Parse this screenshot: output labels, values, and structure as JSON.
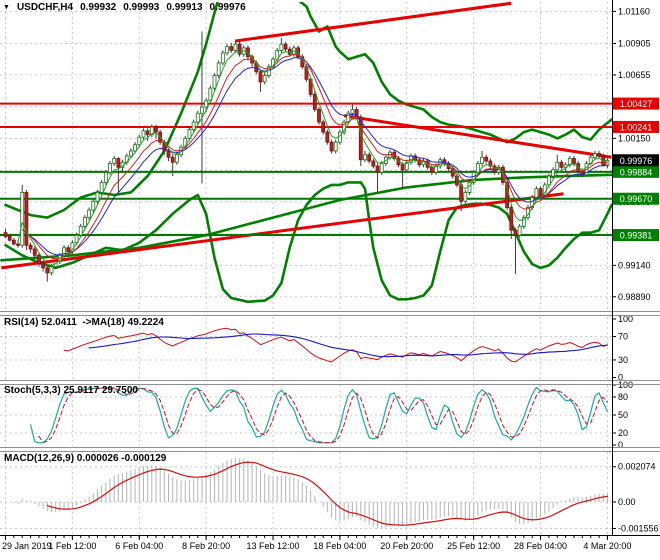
{
  "window": {
    "symbol_period": "USDCHF,H4",
    "open": "0.99932",
    "high": "0.99993",
    "low": "0.99913",
    "close": "0.99976",
    "marker_icon": "▼"
  },
  "panels": {
    "rsi": {
      "title": "RSI(14) 52.0411  ->MA(18) 49.2224",
      "ticks": [
        "100",
        "70",
        "30",
        "0"
      ],
      "grid_levels": [
        70,
        30
      ]
    },
    "stoch": {
      "title": "Stoch(5,3,3) 25.9117 29.7500",
      "ticks": [
        "100",
        "80",
        "50",
        "20",
        "0"
      ],
      "grid_levels": [
        80,
        50,
        20
      ]
    },
    "macd": {
      "title": "MACD(12,26,9) 0.000026 -0.000129",
      "ticks": [
        "0.002074",
        "0.00",
        "-0.001556"
      ]
    }
  },
  "colors": {
    "grid": "#c9c9c9",
    "wick": "#3c3c3c",
    "up_fill": "#ffffff",
    "up_border": "#157615",
    "down_fill": "#b22222",
    "down_border": "#7c1212",
    "band": "#008000",
    "trend": "#e60000",
    "level_res": "#e60000",
    "level_sup": "#007800",
    "ema_fast": "#21a121",
    "ema_mid": "#d42020",
    "ema_slow": "#2026c8",
    "badge_red": "#e60000",
    "badge_green": "#008000",
    "badge_black": "#000000",
    "rsi": "#d01010",
    "rsi_ma": "#1616c8",
    "stoch_k": "#1ba8a8",
    "stoch_d": "#d01010",
    "macd_hist": "#b5b5b5",
    "macd_signal": "#d01010",
    "axis_line": "#000000",
    "splitter": "#909090"
  },
  "chart_data": {
    "type": "candlestick",
    "symbol": "USDCHF",
    "timeframe": "H4",
    "current_price": 0.99976,
    "pip_base": 0.99,
    "price_axis": {
      "top": 1.01235,
      "bottom": 0.98785,
      "ticks": [
        "1.01160",
        "1.00905",
        "1.00655",
        "1.00405",
        "1.00150",
        "0.99895",
        "0.99645",
        "0.99390",
        "0.99140",
        "0.98890"
      ]
    },
    "time_axis": {
      "labels": [
        "29 Jan 2019",
        "1 Feb 12:00",
        "6 Feb 04:00",
        "8 Feb 20:00",
        "13 Feb 12:00",
        "18 Feb 04:00",
        "20 Feb 20:00",
        "25 Feb 12:00",
        "28 Feb 04:00",
        "4 Mar 20:00"
      ],
      "indices": [
        0,
        16,
        32,
        48,
        64,
        80,
        96,
        112,
        128,
        144
      ]
    },
    "levels": [
      {
        "price": 1.00427,
        "color": "red",
        "label": "1.00427"
      },
      {
        "price": 1.00241,
        "color": "red",
        "label": "1.00241"
      },
      {
        "price": 0.99884,
        "color": "green",
        "label": "0.99884"
      },
      {
        "price": 0.9967,
        "color": "green",
        "label": "0.99670"
      },
      {
        "price": 0.99381,
        "color": "green",
        "label": "0.99381"
      }
    ],
    "trendlines": [
      {
        "from": [
          55,
          1.00925
        ],
        "to": [
          121,
          1.01225
        ]
      },
      {
        "from": [
          81,
          1.0033
        ],
        "to": [
          145,
          1.0
        ]
      },
      {
        "from": [
          -1,
          0.9912
        ],
        "to": [
          133.5,
          0.9971
        ]
      }
    ],
    "ma200": [
      [
        -1,
        18
      ],
      [
        16,
        22
      ],
      [
        32,
        28
      ],
      [
        48,
        38
      ],
      [
        64,
        52
      ],
      [
        80,
        66
      ],
      [
        96,
        76
      ],
      [
        112,
        82
      ],
      [
        124,
        84
      ],
      [
        134,
        85
      ],
      [
        145,
        86
      ]
    ],
    "bb_upper": [
      [
        0,
        62
      ],
      [
        6,
        54
      ],
      [
        10,
        52
      ],
      [
        14,
        58
      ],
      [
        18,
        68
      ],
      [
        22,
        72
      ],
      [
        26,
        70
      ],
      [
        30,
        72
      ],
      [
        34,
        85
      ],
      [
        38,
        105
      ],
      [
        42,
        135
      ],
      [
        46,
        168
      ],
      [
        48,
        190
      ],
      [
        50,
        215
      ],
      [
        52,
        238
      ],
      [
        54,
        248
      ],
      [
        56,
        250
      ],
      [
        58,
        248
      ],
      [
        60,
        240
      ],
      [
        62,
        235
      ],
      [
        64,
        232
      ],
      [
        66,
        230
      ],
      [
        68,
        228
      ],
      [
        70,
        225
      ],
      [
        72,
        220
      ],
      [
        73,
        212
      ],
      [
        75,
        200
      ],
      [
        77,
        204
      ],
      [
        79,
        188
      ],
      [
        80,
        184
      ],
      [
        82,
        178
      ],
      [
        84,
        180
      ],
      [
        86,
        182
      ],
      [
        88,
        175
      ],
      [
        90,
        160
      ],
      [
        92,
        150
      ],
      [
        94,
        145
      ],
      [
        96,
        142
      ],
      [
        98,
        140
      ],
      [
        100,
        138
      ],
      [
        102,
        132
      ],
      [
        104,
        128
      ],
      [
        106,
        126
      ],
      [
        108,
        125
      ],
      [
        110,
        124
      ],
      [
        112,
        122
      ],
      [
        114,
        120
      ],
      [
        116,
        118
      ],
      [
        118,
        115
      ],
      [
        120,
        112
      ],
      [
        122,
        115
      ],
      [
        124,
        120
      ],
      [
        126,
        122
      ],
      [
        128,
        120
      ],
      [
        130,
        118
      ],
      [
        132,
        115
      ],
      [
        134,
        118
      ],
      [
        136,
        122
      ],
      [
        138,
        116
      ],
      [
        140,
        114
      ],
      [
        142,
        122
      ],
      [
        145,
        130
      ]
    ],
    "bb_lower": [
      [
        0,
        30
      ],
      [
        4,
        22
      ],
      [
        8,
        16
      ],
      [
        12,
        12
      ],
      [
        16,
        16
      ],
      [
        20,
        22
      ],
      [
        24,
        28
      ],
      [
        28,
        26
      ],
      [
        32,
        32
      ],
      [
        36,
        42
      ],
      [
        40,
        55
      ],
      [
        44,
        66
      ],
      [
        46,
        70
      ],
      [
        48,
        55
      ],
      [
        50,
        20
      ],
      [
        52,
        -5
      ],
      [
        54,
        -12
      ],
      [
        58,
        -15
      ],
      [
        62,
        -14
      ],
      [
        64,
        -10
      ],
      [
        66,
        0
      ],
      [
        68,
        28
      ],
      [
        70,
        50
      ],
      [
        72,
        62
      ],
      [
        74,
        70
      ],
      [
        76,
        75
      ],
      [
        78,
        78
      ],
      [
        80,
        78
      ],
      [
        82,
        80
      ],
      [
        84,
        80
      ],
      [
        85,
        80
      ],
      [
        86,
        75
      ],
      [
        87,
        50
      ],
      [
        88,
        28
      ],
      [
        90,
        2
      ],
      [
        92,
        -10
      ],
      [
        94,
        -13
      ],
      [
        96,
        -13
      ],
      [
        98,
        -12
      ],
      [
        100,
        -10
      ],
      [
        102,
        -2
      ],
      [
        104,
        25
      ],
      [
        106,
        50
      ],
      [
        108,
        60
      ],
      [
        110,
        62
      ],
      [
        112,
        63
      ],
      [
        114,
        63
      ],
      [
        116,
        62
      ],
      [
        118,
        60
      ],
      [
        120,
        55
      ],
      [
        122,
        40
      ],
      [
        124,
        25
      ],
      [
        126,
        15
      ],
      [
        128,
        12
      ],
      [
        130,
        14
      ],
      [
        132,
        20
      ],
      [
        134,
        28
      ],
      [
        136,
        35
      ],
      [
        138,
        40
      ],
      [
        140,
        40
      ],
      [
        142,
        42
      ],
      [
        144,
        55
      ],
      [
        145,
        62
      ]
    ],
    "indicators": {
      "rsi_period": 14,
      "rsi_ma": 18,
      "stoch": [
        5,
        3,
        3
      ],
      "macd": [
        12,
        26,
        9
      ]
    },
    "candles": [
      [
        40,
        43,
        36,
        37
      ],
      [
        37,
        39,
        33,
        34
      ],
      [
        34,
        36,
        30,
        31
      ],
      [
        31,
        34,
        28,
        30
      ],
      [
        30,
        78,
        28,
        72
      ],
      [
        72,
        74,
        26,
        30
      ],
      [
        30,
        32,
        24,
        27
      ],
      [
        27,
        29,
        20,
        22
      ],
      [
        22,
        24,
        13,
        15
      ],
      [
        15,
        17,
        9,
        12
      ],
      [
        12,
        14,
        1,
        8
      ],
      [
        8,
        15,
        6,
        13
      ],
      [
        13,
        19,
        11,
        17
      ],
      [
        17,
        24,
        15,
        22
      ],
      [
        22,
        30,
        20,
        28
      ],
      [
        28,
        30,
        22,
        25
      ],
      [
        25,
        34,
        23,
        32
      ],
      [
        32,
        40,
        30,
        38
      ],
      [
        38,
        47,
        36,
        45
      ],
      [
        45,
        54,
        43,
        52
      ],
      [
        52,
        60,
        50,
        58
      ],
      [
        58,
        67,
        56,
        65
      ],
      [
        65,
        74,
        63,
        72
      ],
      [
        72,
        82,
        70,
        80
      ],
      [
        80,
        90,
        78,
        88
      ],
      [
        88,
        97,
        86,
        95
      ],
      [
        95,
        101,
        93,
        99
      ],
      [
        99,
        100,
        71,
        92
      ],
      [
        92,
        98,
        88,
        96
      ],
      [
        96,
        103,
        94,
        101
      ],
      [
        101,
        107,
        99,
        105
      ],
      [
        105,
        112,
        103,
        110
      ],
      [
        110,
        118,
        108,
        116
      ],
      [
        116,
        123,
        114,
        121
      ],
      [
        121,
        123,
        113,
        118
      ],
      [
        118,
        126,
        116,
        124
      ],
      [
        124,
        126,
        115,
        120
      ],
      [
        120,
        122,
        110,
        112
      ],
      [
        112,
        114,
        102,
        105
      ],
      [
        105,
        107,
        97,
        100
      ],
      [
        100,
        102,
        85,
        96
      ],
      [
        96,
        104,
        94,
        102
      ],
      [
        102,
        110,
        100,
        108
      ],
      [
        108,
        117,
        106,
        115
      ],
      [
        115,
        124,
        113,
        122
      ],
      [
        122,
        130,
        120,
        128
      ],
      [
        128,
        137,
        126,
        135
      ],
      [
        135,
        200,
        79,
        140
      ],
      [
        140,
        147,
        136,
        145
      ],
      [
        145,
        157,
        143,
        155
      ],
      [
        155,
        167,
        153,
        165
      ],
      [
        165,
        177,
        163,
        175
      ],
      [
        175,
        185,
        173,
        183
      ],
      [
        183,
        190,
        181,
        188
      ],
      [
        188,
        191,
        183,
        185
      ],
      [
        185,
        193,
        183,
        190
      ],
      [
        190,
        192,
        180,
        182
      ],
      [
        182,
        189,
        180,
        187
      ],
      [
        187,
        189,
        177,
        180
      ],
      [
        180,
        182,
        172,
        175
      ],
      [
        175,
        177,
        166,
        168
      ],
      [
        168,
        170,
        152,
        160
      ],
      [
        160,
        167,
        158,
        165
      ],
      [
        165,
        174,
        163,
        172
      ],
      [
        172,
        180,
        170,
        178
      ],
      [
        178,
        187,
        176,
        185
      ],
      [
        185,
        195,
        183,
        190
      ],
      [
        190,
        192,
        184,
        186
      ],
      [
        186,
        188,
        180,
        182
      ],
      [
        182,
        189,
        180,
        187
      ],
      [
        187,
        189,
        178,
        180
      ],
      [
        180,
        182,
        170,
        172
      ],
      [
        172,
        174,
        160,
        162
      ],
      [
        162,
        164,
        148,
        150
      ],
      [
        150,
        152,
        136,
        138
      ],
      [
        138,
        140,
        126,
        128
      ],
      [
        128,
        130,
        118,
        120
      ],
      [
        120,
        122,
        110,
        112
      ],
      [
        112,
        114,
        103,
        105
      ],
      [
        105,
        114,
        103,
        112
      ],
      [
        112,
        122,
        110,
        120
      ],
      [
        120,
        130,
        118,
        128
      ],
      [
        128,
        137,
        126,
        135
      ],
      [
        135,
        142,
        133,
        138
      ],
      [
        138,
        140,
        130,
        132
      ],
      [
        132,
        134,
        93,
        98
      ],
      [
        98,
        105,
        96,
        102
      ],
      [
        102,
        104,
        95,
        97
      ],
      [
        97,
        99,
        91,
        93
      ],
      [
        93,
        95,
        72,
        88
      ],
      [
        88,
        97,
        86,
        95
      ],
      [
        95,
        102,
        93,
        100
      ],
      [
        100,
        106,
        98,
        104
      ],
      [
        104,
        106,
        97,
        99
      ],
      [
        99,
        101,
        92,
        94
      ],
      [
        94,
        96,
        75,
        90
      ],
      [
        90,
        98,
        88,
        96
      ],
      [
        96,
        103,
        94,
        101
      ],
      [
        101,
        103,
        96,
        98
      ],
      [
        98,
        100,
        92,
        94
      ],
      [
        94,
        99,
        92,
        97
      ],
      [
        97,
        99,
        90,
        92
      ],
      [
        92,
        94,
        86,
        88
      ],
      [
        88,
        95,
        86,
        93
      ],
      [
        93,
        100,
        91,
        98
      ],
      [
        98,
        100,
        93,
        95
      ],
      [
        95,
        97,
        89,
        91
      ],
      [
        91,
        93,
        83,
        85
      ],
      [
        85,
        87,
        76,
        78
      ],
      [
        78,
        80,
        57,
        65
      ],
      [
        65,
        74,
        63,
        72
      ],
      [
        72,
        82,
        70,
        80
      ],
      [
        80,
        90,
        78,
        88
      ],
      [
        88,
        97,
        86,
        95
      ],
      [
        95,
        105,
        93,
        100
      ],
      [
        100,
        102,
        95,
        97
      ],
      [
        97,
        99,
        91,
        93
      ],
      [
        93,
        95,
        86,
        88
      ],
      [
        88,
        94,
        86,
        92
      ],
      [
        92,
        94,
        78,
        80
      ],
      [
        80,
        82,
        58,
        60
      ],
      [
        60,
        62,
        35,
        42
      ],
      [
        42,
        44,
        7,
        38
      ],
      [
        38,
        47,
        36,
        45
      ],
      [
        45,
        54,
        43,
        52
      ],
      [
        52,
        62,
        50,
        60
      ],
      [
        60,
        70,
        58,
        68
      ],
      [
        68,
        77,
        66,
        75
      ],
      [
        75,
        77,
        68,
        70
      ],
      [
        70,
        80,
        68,
        78
      ],
      [
        78,
        87,
        76,
        85
      ],
      [
        85,
        92,
        83,
        90
      ],
      [
        90,
        102,
        88,
        96
      ],
      [
        96,
        98,
        90,
        92
      ],
      [
        92,
        96,
        88,
        94
      ],
      [
        94,
        101,
        92,
        99
      ],
      [
        99,
        101,
        93,
        95
      ],
      [
        95,
        97,
        87,
        89
      ],
      [
        89,
        91,
        84,
        86
      ],
      [
        86,
        97,
        85,
        95
      ],
      [
        95,
        102,
        94,
        100
      ],
      [
        100,
        105,
        98,
        103
      ],
      [
        103,
        105,
        99,
        101
      ],
      [
        101,
        103,
        93,
        93.2
      ],
      [
        93.2,
        99.3,
        91.3,
        97.6
      ]
    ]
  }
}
